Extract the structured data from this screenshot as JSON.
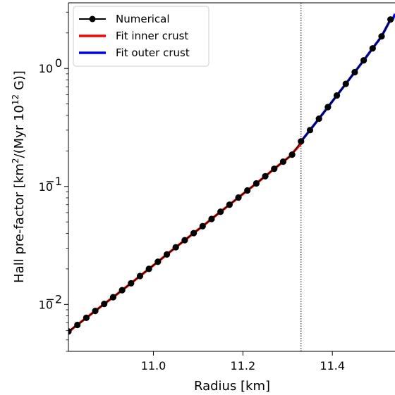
{
  "chart_data": {
    "type": "line",
    "scale_y": "log",
    "xlim": [
      10.81,
      11.54
    ],
    "ylim": [
      0.004,
      3.6
    ],
    "xticks": [
      11.0,
      11.2,
      11.4
    ],
    "xtick_labels": [
      "11.0",
      "11.2",
      "11.4"
    ],
    "xlabel": "Radius [km]",
    "ylabel": {
      "prefix": "Hall pre-factor [km",
      "sup1": "2",
      "mid": "/(Myr 10",
      "sup2": "12",
      "suffix": " G)]"
    },
    "yticks": [
      {
        "value": 0.01,
        "base": "10",
        "exp": "−2"
      },
      {
        "value": 0.1,
        "base": "10",
        "exp": "−1"
      },
      {
        "value": 1,
        "base": "10",
        "exp": "0"
      }
    ],
    "vline_x": 11.33,
    "legend": {
      "position": "top-left",
      "entries": [
        {
          "label": "Numerical",
          "color": "#000000",
          "style": "line-marker"
        },
        {
          "label": "Fit inner crust",
          "color": "#ff0000",
          "style": "line"
        },
        {
          "label": "Fit outer crust",
          "color": "#0000ff",
          "style": "line"
        }
      ]
    },
    "series": [
      {
        "name": "Numerical",
        "color": "#000000",
        "x": [
          10.81,
          10.83,
          10.85,
          10.87,
          10.89,
          10.91,
          10.93,
          10.95,
          10.97,
          10.99,
          11.01,
          11.03,
          11.05,
          11.07,
          11.09,
          11.11,
          11.13,
          11.15,
          11.17,
          11.19,
          11.21,
          11.23,
          11.25,
          11.27,
          11.29,
          11.31,
          11.33,
          11.35,
          11.37,
          11.39,
          11.41,
          11.43,
          11.45,
          11.47,
          11.49,
          11.51,
          11.53
        ],
        "y": [
          0.0059,
          0.0067,
          0.0077,
          0.0088,
          0.0101,
          0.0115,
          0.0132,
          0.0151,
          0.0174,
          0.02,
          0.023,
          0.0265,
          0.0305,
          0.035,
          0.0402,
          0.046,
          0.053,
          0.061,
          0.07,
          0.0805,
          0.0925,
          0.106,
          0.122,
          0.141,
          0.162,
          0.186,
          0.241,
          0.3,
          0.375,
          0.47,
          0.59,
          0.74,
          0.93,
          1.17,
          1.48,
          1.87,
          2.6
        ]
      },
      {
        "name": "Fit inner crust",
        "color": "#ff0000",
        "x_range": [
          10.81,
          11.33
        ],
        "y_range": [
          0.0058,
          0.23
        ]
      },
      {
        "name": "Fit outer crust",
        "color": "#0000ff",
        "x_range": [
          11.33,
          11.54
        ],
        "y_range": [
          0.241,
          2.9
        ]
      }
    ]
  }
}
